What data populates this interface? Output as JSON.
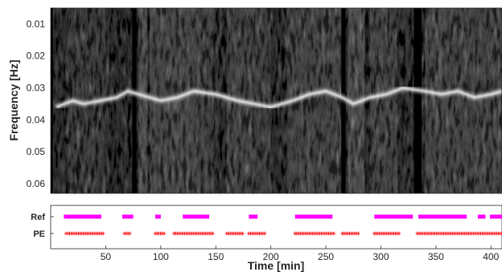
{
  "chart_data": [
    {
      "type": "heatmap",
      "title": "",
      "xlabel": "",
      "ylabel": "Frequency [Hz]",
      "xlim": [
        0,
        410
      ],
      "ylim": [
        0.005,
        0.063
      ],
      "y_reversed": true,
      "yticks": [
        0.01,
        0.02,
        0.03,
        0.04,
        0.05,
        0.06
      ],
      "ytick_labels": [
        "0.01",
        "0.02",
        "0.03",
        "0.04",
        "0.05",
        "0.06"
      ],
      "colormap": "gray",
      "background": "#000000",
      "ridge": [
        {
          "t": 5,
          "f": 0.036
        },
        {
          "t": 20,
          "f": 0.034
        },
        {
          "t": 30,
          "f": 0.035
        },
        {
          "t": 45,
          "f": 0.034
        },
        {
          "t": 60,
          "f": 0.033
        },
        {
          "t": 70,
          "f": 0.031
        },
        {
          "t": 100,
          "f": 0.034
        },
        {
          "t": 115,
          "f": 0.033
        },
        {
          "t": 130,
          "f": 0.031
        },
        {
          "t": 150,
          "f": 0.032
        },
        {
          "t": 170,
          "f": 0.034
        },
        {
          "t": 185,
          "f": 0.035
        },
        {
          "t": 200,
          "f": 0.036
        },
        {
          "t": 220,
          "f": 0.034
        },
        {
          "t": 235,
          "f": 0.032
        },
        {
          "t": 250,
          "f": 0.031
        },
        {
          "t": 265,
          "f": 0.033
        },
        {
          "t": 275,
          "f": 0.035
        },
        {
          "t": 290,
          "f": 0.033
        },
        {
          "t": 305,
          "f": 0.032
        },
        {
          "t": 320,
          "f": 0.03
        },
        {
          "t": 340,
          "f": 0.031
        },
        {
          "t": 355,
          "f": 0.032
        },
        {
          "t": 370,
          "f": 0.031
        },
        {
          "t": 385,
          "f": 0.033
        },
        {
          "t": 400,
          "f": 0.032
        },
        {
          "t": 410,
          "f": 0.031
        }
      ],
      "bright_columns": [
        [
          15,
          40,
          0.4
        ],
        [
          40,
          50,
          0.4
        ],
        [
          80,
          88,
          0.9
        ],
        [
          90,
          135,
          0.7
        ],
        [
          135,
          148,
          0.5
        ],
        [
          148,
          152,
          0.15
        ],
        [
          160,
          185,
          0.6
        ],
        [
          185,
          200,
          0.5
        ],
        [
          215,
          245,
          0.6
        ],
        [
          245,
          265,
          0.6
        ],
        [
          270,
          285,
          0.9
        ],
        [
          290,
          315,
          0.6
        ],
        [
          320,
          335,
          0.08
        ],
        [
          340,
          360,
          0.7
        ],
        [
          360,
          410,
          0.6
        ]
      ],
      "dark_gaps": [
        [
          0,
          2
        ],
        [
          74,
          78
        ],
        [
          264,
          268
        ],
        [
          330,
          337
        ]
      ]
    },
    {
      "type": "scatter",
      "xlabel": "Time [min]",
      "xlim": [
        0,
        410
      ],
      "xticks": [
        50,
        100,
        150,
        200,
        250,
        300,
        350,
        400
      ],
      "xtick_labels": [
        "50",
        "100",
        "150",
        "200",
        "250",
        "300",
        "350",
        "400"
      ],
      "series": [
        {
          "name": "Ref",
          "color": "#ff00ff",
          "marker": "square",
          "segments": [
            [
              12,
              46
            ],
            [
              65,
              75
            ],
            [
              95,
              100
            ],
            [
              120,
              144
            ],
            [
              180,
              188
            ],
            [
              222,
              256
            ],
            [
              294,
              329
            ],
            [
              334,
              378
            ],
            [
              388,
              395
            ],
            [
              399,
              410
            ]
          ]
        },
        {
          "name": "PE",
          "color": "#ff0000",
          "marker": "plus",
          "segments": [
            [
              14,
              48
            ],
            [
              67,
              73
            ],
            [
              95,
              104
            ],
            [
              112,
              148
            ],
            [
              160,
              175
            ],
            [
              180,
              195
            ],
            [
              222,
              258
            ],
            [
              265,
              281
            ],
            [
              294,
              318
            ],
            [
              333,
              410
            ]
          ]
        }
      ]
    }
  ]
}
